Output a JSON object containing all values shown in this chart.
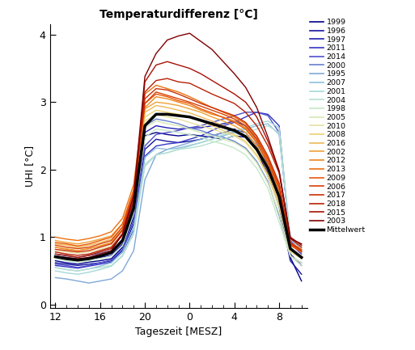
{
  "title": "Temperaturdifferenz [°C]",
  "xlabel": "Tageszeit [MESZ]",
  "ylabel": "UHI [°C]",
  "xlim": [
    11.5,
    34.5
  ],
  "ylim": [
    -0.05,
    4.15
  ],
  "xticks": [
    12,
    16,
    20,
    24,
    28,
    32
  ],
  "xticklabels": [
    "12",
    "16",
    "20",
    "0",
    "4",
    "8"
  ],
  "yticks": [
    0,
    1,
    2,
    3,
    4
  ],
  "hours": [
    12,
    13,
    14,
    15,
    16,
    17,
    18,
    19,
    20,
    21,
    22,
    23,
    24,
    25,
    26,
    27,
    28,
    29,
    30,
    31,
    32,
    33,
    34
  ],
  "series": {
    "1999": {
      "color": "#00008B",
      "values": [
        0.65,
        0.62,
        0.6,
        0.63,
        0.65,
        0.68,
        0.85,
        1.3,
        2.5,
        2.55,
        2.52,
        2.5,
        2.52,
        2.5,
        2.48,
        2.45,
        2.5,
        2.48,
        2.3,
        1.9,
        1.5,
        0.7,
        0.35
      ]
    },
    "1996": {
      "color": "#1515A0",
      "values": [
        0.62,
        0.6,
        0.58,
        0.6,
        0.62,
        0.65,
        0.8,
        1.2,
        2.3,
        2.45,
        2.42,
        2.4,
        2.42,
        2.45,
        2.5,
        2.55,
        2.6,
        2.55,
        2.35,
        1.95,
        1.45,
        0.65,
        0.45
      ]
    },
    "1997": {
      "color": "#2020B0",
      "values": [
        0.7,
        0.68,
        0.65,
        0.68,
        0.7,
        0.73,
        0.9,
        1.4,
        2.55,
        2.65,
        2.62,
        2.6,
        2.62,
        2.62,
        2.65,
        2.68,
        2.72,
        2.65,
        2.45,
        2.05,
        1.6,
        0.75,
        0.58
      ]
    },
    "2011": {
      "color": "#3535C5",
      "values": [
        0.58,
        0.56,
        0.54,
        0.57,
        0.6,
        0.63,
        0.78,
        1.1,
        2.2,
        2.35,
        2.38,
        2.4,
        2.45,
        2.5,
        2.58,
        2.65,
        2.7,
        2.78,
        2.85,
        2.82,
        2.65,
        0.9,
        0.75
      ]
    },
    "2014": {
      "color": "#5050CC",
      "values": [
        0.6,
        0.58,
        0.55,
        0.58,
        0.62,
        0.66,
        0.82,
        1.25,
        2.35,
        2.52,
        2.55,
        2.58,
        2.62,
        2.65,
        2.7,
        2.75,
        2.8,
        2.85,
        2.85,
        2.8,
        2.55,
        0.95,
        0.78
      ]
    },
    "2000": {
      "color": "#6680CC",
      "values": [
        0.75,
        0.72,
        0.7,
        0.73,
        0.76,
        0.8,
        0.97,
        1.5,
        2.65,
        2.75,
        2.72,
        2.68,
        2.62,
        2.58,
        2.52,
        2.48,
        2.42,
        2.32,
        2.12,
        1.82,
        1.32,
        0.72,
        0.62
      ]
    },
    "1995": {
      "color": "#7FA8D8",
      "values": [
        0.4,
        0.38,
        0.35,
        0.32,
        0.35,
        0.38,
        0.5,
        0.8,
        1.85,
        2.22,
        2.3,
        2.35,
        2.4,
        2.45,
        2.5,
        2.55,
        2.55,
        2.5,
        2.38,
        2.1,
        1.65,
        0.85,
        0.68
      ]
    },
    "2007": {
      "color": "#90C0DC",
      "values": [
        0.55,
        0.52,
        0.5,
        0.53,
        0.57,
        0.62,
        0.78,
        1.15,
        2.18,
        2.32,
        2.3,
        2.32,
        2.36,
        2.4,
        2.45,
        2.5,
        2.55,
        2.6,
        2.65,
        2.68,
        2.52,
        0.98,
        0.82
      ]
    },
    "2001": {
      "color": "#A5D8D8",
      "values": [
        0.5,
        0.47,
        0.45,
        0.48,
        0.52,
        0.57,
        0.72,
        1.05,
        2.05,
        2.22,
        2.25,
        2.3,
        2.35,
        2.4,
        2.45,
        2.52,
        2.58,
        2.62,
        2.68,
        2.72,
        2.62,
        1.0,
        0.88
      ]
    },
    "2004": {
      "color": "#B5E0D0",
      "values": [
        0.55,
        0.52,
        0.5,
        0.53,
        0.55,
        0.58,
        0.73,
        1.08,
        2.08,
        2.22,
        2.25,
        2.3,
        2.32,
        2.35,
        2.4,
        2.45,
        2.5,
        2.55,
        2.6,
        2.65,
        2.55,
        1.0,
        0.85
      ]
    },
    "1998": {
      "color": "#C5E8C8",
      "values": [
        0.68,
        0.65,
        0.63,
        0.65,
        0.68,
        0.72,
        0.87,
        1.35,
        2.48,
        2.6,
        2.58,
        2.55,
        2.52,
        2.48,
        2.42,
        2.38,
        2.32,
        2.22,
        2.02,
        1.72,
        1.22,
        0.72,
        0.58
      ]
    },
    "2005": {
      "color": "#D5E8B8",
      "values": [
        0.72,
        0.7,
        0.68,
        0.7,
        0.73,
        0.78,
        0.95,
        1.45,
        2.62,
        2.72,
        2.68,
        2.65,
        2.6,
        2.55,
        2.5,
        2.45,
        2.4,
        2.3,
        2.1,
        1.8,
        1.35,
        0.72,
        0.62
      ]
    },
    "2010": {
      "color": "#E5E0A0",
      "values": [
        0.8,
        0.78,
        0.76,
        0.78,
        0.82,
        0.87,
        1.05,
        1.55,
        2.72,
        2.82,
        2.78,
        2.75,
        2.7,
        2.65,
        2.6,
        2.55,
        2.5,
        2.4,
        2.2,
        1.9,
        1.45,
        0.78,
        0.68
      ]
    },
    "2008": {
      "color": "#EED070",
      "values": [
        0.85,
        0.83,
        0.8,
        0.83,
        0.87,
        0.92,
        1.1,
        1.6,
        2.78,
        2.88,
        2.85,
        2.82,
        2.78,
        2.72,
        2.65,
        2.58,
        2.52,
        2.42,
        2.22,
        1.92,
        1.5,
        0.8,
        0.7
      ]
    },
    "2016": {
      "color": "#EEB855",
      "values": [
        0.9,
        0.88,
        0.85,
        0.88,
        0.92,
        0.97,
        1.15,
        1.65,
        2.85,
        2.95,
        2.92,
        2.88,
        2.84,
        2.78,
        2.72,
        2.65,
        2.58,
        2.48,
        2.28,
        1.98,
        1.55,
        0.82,
        0.72
      ]
    },
    "2002": {
      "color": "#EEA035",
      "values": [
        0.95,
        0.92,
        0.9,
        0.93,
        0.97,
        1.02,
        1.2,
        1.7,
        2.9,
        3.0,
        2.98,
        2.95,
        2.9,
        2.85,
        2.78,
        2.72,
        2.65,
        2.55,
        2.35,
        2.05,
        1.65,
        0.88,
        0.78
      ]
    },
    "2012": {
      "color": "#EE8820",
      "values": [
        0.85,
        0.82,
        0.8,
        0.83,
        0.87,
        0.92,
        1.12,
        1.62,
        2.92,
        3.08,
        3.05,
        3.0,
        2.95,
        2.88,
        2.82,
        2.78,
        2.72,
        2.62,
        2.42,
        2.12,
        1.72,
        0.88,
        0.78
      ]
    },
    "2013": {
      "color": "#EE7010",
      "values": [
        1.0,
        0.97,
        0.95,
        0.98,
        1.02,
        1.08,
        1.28,
        1.78,
        3.12,
        3.25,
        3.2,
        3.15,
        3.08,
        3.0,
        2.92,
        2.85,
        2.78,
        2.68,
        2.48,
        2.18,
        1.78,
        0.92,
        0.82
      ]
    },
    "2009": {
      "color": "#E85808",
      "values": [
        0.92,
        0.9,
        0.87,
        0.9,
        0.95,
        1.0,
        1.2,
        1.7,
        2.98,
        3.12,
        3.08,
        3.02,
        2.98,
        2.9,
        2.84,
        2.77,
        2.7,
        2.6,
        2.4,
        2.1,
        1.7,
        0.88,
        0.78
      ]
    },
    "2006": {
      "color": "#D84008",
      "values": [
        0.88,
        0.85,
        0.83,
        0.85,
        0.9,
        0.95,
        1.15,
        1.65,
        2.98,
        3.15,
        3.1,
        3.05,
        3.0,
        2.94,
        2.88,
        2.82,
        2.75,
        2.65,
        2.45,
        2.15,
        1.75,
        0.9,
        0.8
      ]
    },
    "2017": {
      "color": "#C83008",
      "values": [
        0.82,
        0.8,
        0.78,
        0.8,
        0.85,
        0.9,
        1.1,
        1.6,
        3.05,
        3.2,
        3.18,
        3.12,
        3.05,
        2.98,
        2.92,
        2.86,
        2.8,
        2.7,
        2.5,
        2.2,
        1.8,
        0.92,
        0.8
      ]
    },
    "2018": {
      "color": "#B82005",
      "values": [
        0.78,
        0.75,
        0.73,
        0.75,
        0.8,
        0.85,
        1.05,
        1.55,
        3.15,
        3.32,
        3.35,
        3.3,
        3.28,
        3.2,
        3.12,
        3.05,
        2.98,
        2.85,
        2.65,
        2.35,
        1.95,
        0.98,
        0.85
      ]
    },
    "2015": {
      "color": "#A81005",
      "values": [
        0.75,
        0.73,
        0.7,
        0.73,
        0.78,
        0.83,
        1.03,
        1.53,
        3.3,
        3.55,
        3.6,
        3.55,
        3.5,
        3.42,
        3.32,
        3.22,
        3.12,
        3.0,
        2.78,
        2.42,
        1.98,
        1.0,
        0.88
      ]
    },
    "2003": {
      "color": "#800000",
      "values": [
        0.72,
        0.7,
        0.68,
        0.7,
        0.75,
        0.8,
        1.05,
        1.62,
        3.38,
        3.72,
        3.92,
        3.98,
        4.02,
        3.9,
        3.78,
        3.6,
        3.42,
        3.22,
        2.92,
        2.48,
        1.98,
        0.98,
        0.9
      ]
    }
  },
  "mean_values": [
    0.71,
    0.68,
    0.66,
    0.68,
    0.72,
    0.77,
    0.95,
    1.43,
    2.65,
    2.82,
    2.82,
    2.8,
    2.78,
    2.73,
    2.68,
    2.63,
    2.58,
    2.49,
    2.3,
    2.02,
    1.6,
    0.83,
    0.7
  ],
  "legend_order": [
    "1999",
    "1996",
    "1997",
    "2011",
    "2014",
    "2000",
    "1995",
    "2007",
    "2001",
    "2004",
    "1998",
    "2005",
    "2010",
    "2008",
    "2016",
    "2002",
    "2012",
    "2013",
    "2009",
    "2006",
    "2017",
    "2018",
    "2015",
    "2003",
    "Mittelwert"
  ],
  "figwidth": 5.13,
  "figheight": 4.33,
  "dpi": 100
}
